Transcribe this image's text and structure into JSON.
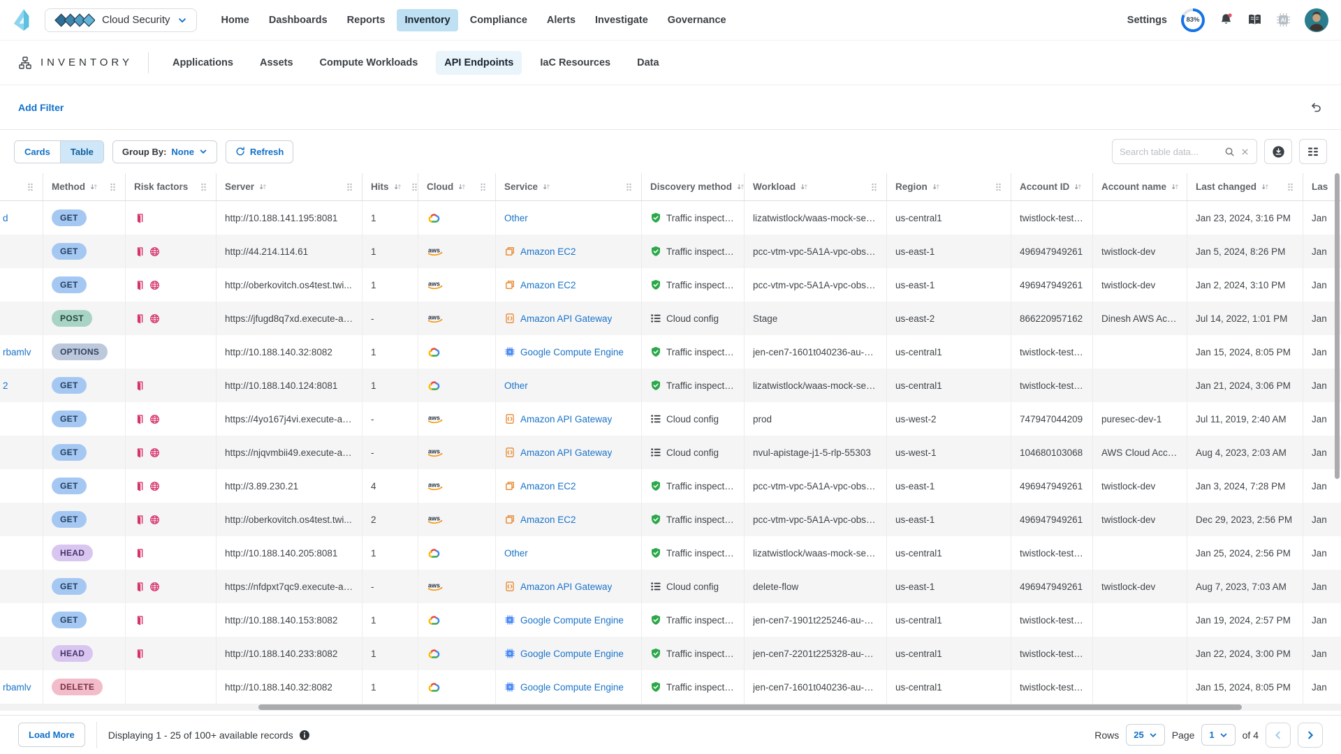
{
  "topnav": {
    "app_switcher": {
      "label": "Cloud Security"
    },
    "items": [
      {
        "label": "Home",
        "active": false
      },
      {
        "label": "Dashboards",
        "active": false
      },
      {
        "label": "Reports",
        "active": false
      },
      {
        "label": "Inventory",
        "active": true
      },
      {
        "label": "Compliance",
        "active": false
      },
      {
        "label": "Alerts",
        "active": false
      },
      {
        "label": "Investigate",
        "active": false
      },
      {
        "label": "Governance",
        "active": false
      }
    ],
    "settings_label": "Settings",
    "credits_percent": "83%"
  },
  "inventory_bar": {
    "title": "INVENTORY",
    "tabs": [
      {
        "label": "Applications",
        "active": false
      },
      {
        "label": "Assets",
        "active": false
      },
      {
        "label": "Compute Workloads",
        "active": false
      },
      {
        "label": "API Endpoints",
        "active": true
      },
      {
        "label": "IaC Resources",
        "active": false
      },
      {
        "label": "Data",
        "active": false
      }
    ]
  },
  "filter_bar": {
    "add_filter_label": "Add Filter"
  },
  "toolbar": {
    "view_toggle": {
      "cards_label": "Cards",
      "table_label": "Table",
      "active": "Table"
    },
    "group_by_label": "Group By:",
    "group_by_value": "None",
    "refresh_label": "Refresh",
    "search_placeholder": "Search table data..."
  },
  "table": {
    "columns": [
      {
        "label": "",
        "slug": "endpoint",
        "sortable": false
      },
      {
        "label": "Method",
        "slug": "method",
        "sortable": true
      },
      {
        "label": "Risk factors",
        "slug": "risk-factors",
        "sortable": false
      },
      {
        "label": "Server",
        "slug": "server",
        "sortable": true
      },
      {
        "label": "Hits",
        "slug": "hits",
        "sortable": true
      },
      {
        "label": "Cloud",
        "slug": "cloud",
        "sortable": true
      },
      {
        "label": "Service",
        "slug": "service",
        "sortable": true
      },
      {
        "label": "Discovery method",
        "slug": "discovery-method",
        "sortable": true
      },
      {
        "label": "Workload",
        "slug": "workload",
        "sortable": true
      },
      {
        "label": "Region",
        "slug": "region",
        "sortable": true
      },
      {
        "label": "Account ID",
        "slug": "account-id",
        "sortable": true
      },
      {
        "label": "Account name",
        "slug": "account-name",
        "sortable": true
      },
      {
        "label": "Last changed",
        "slug": "last-changed",
        "sortable": true
      },
      {
        "label": "Las",
        "slug": "last-seen",
        "sortable": false
      }
    ],
    "discovery_labels": {
      "traffic": "Traffic inspection",
      "config": "Cloud config"
    },
    "method_colors": {
      "GET": {
        "bg": "#a5c8f3",
        "fg": "#243e5f"
      },
      "POST": {
        "bg": "#a9d3c5",
        "fg": "#1f4a3c"
      },
      "OPTIONS": {
        "bg": "#bcc8dc",
        "fg": "#33415c"
      },
      "HEAD": {
        "bg": "#d9c6f0",
        "fg": "#46356b"
      },
      "DELETE": {
        "bg": "#f3bcca",
        "fg": "#7a2f45"
      }
    },
    "rows": [
      {
        "fragment": "d",
        "method": "GET",
        "risks": [
          "door"
        ],
        "server": "http://10.188.141.195:8081",
        "hits": "1",
        "cloud": "gcp",
        "service": "Other",
        "discovery": "traffic",
        "workload": "lizatwistlock/waas-mock-servi...",
        "region": "us-central1",
        "account_id": "twistlock-test-...",
        "account_name": "",
        "last_changed": "Jan 23, 2024, 3:16 PM",
        "last_seen": "Jan"
      },
      {
        "fragment": "",
        "method": "GET",
        "risks": [
          "door",
          "globe"
        ],
        "server": "http://44.214.114.61",
        "hits": "1",
        "cloud": "aws",
        "service": "Amazon EC2",
        "discovery": "traffic",
        "workload": "pcc-vtm-vpc-5A1A-vpc-obser...",
        "region": "us-east-1",
        "account_id": "496947949261",
        "account_name": "twistlock-dev",
        "last_changed": "Jan 5, 2024, 8:26 PM",
        "last_seen": "Jan"
      },
      {
        "fragment": "",
        "method": "GET",
        "risks": [
          "door",
          "globe"
        ],
        "server": "http://oberkovitch.os4test.twi...",
        "hits": "1",
        "cloud": "aws",
        "service": "Amazon EC2",
        "discovery": "traffic",
        "workload": "pcc-vtm-vpc-5A1A-vpc-obser...",
        "region": "us-east-1",
        "account_id": "496947949261",
        "account_name": "twistlock-dev",
        "last_changed": "Jan 2, 2024, 3:10 PM",
        "last_seen": "Jan"
      },
      {
        "fragment": "",
        "method": "POST",
        "risks": [
          "door",
          "globe"
        ],
        "server": "https://jfugd8q7xd.execute-ap...",
        "hits": "-",
        "cloud": "aws",
        "service": "Amazon API Gateway",
        "discovery": "config",
        "workload": "Stage",
        "region": "us-east-2",
        "account_id": "866220957162",
        "account_name": "Dinesh AWS Acc...",
        "last_changed": "Jul 14, 2022, 1:01 PM",
        "last_seen": "Jan"
      },
      {
        "fragment": "rbamlv",
        "method": "OPTIONS",
        "risks": [],
        "server": "http://10.188.140.32:8082",
        "hits": "1",
        "cloud": "gcp",
        "service": "Google Compute Engine",
        "discovery": "traffic",
        "workload": "jen-cen7-1601t040236-au-ho...",
        "region": "us-central1",
        "account_id": "twistlock-test-...",
        "account_name": "",
        "last_changed": "Jan 15, 2024, 8:05 PM",
        "last_seen": "Jan"
      },
      {
        "fragment": "2",
        "method": "GET",
        "risks": [
          "door"
        ],
        "server": "http://10.188.140.124:8081",
        "hits": "1",
        "cloud": "gcp",
        "service": "Other",
        "discovery": "traffic",
        "workload": "lizatwistlock/waas-mock-servi...",
        "region": "us-central1",
        "account_id": "twistlock-test-...",
        "account_name": "",
        "last_changed": "Jan 21, 2024, 3:06 PM",
        "last_seen": "Jan"
      },
      {
        "fragment": "",
        "method": "GET",
        "risks": [
          "door",
          "globe"
        ],
        "server": "https://4yo167j4vi.execute-ap...",
        "hits": "-",
        "cloud": "aws",
        "service": "Amazon API Gateway",
        "discovery": "config",
        "workload": "prod",
        "region": "us-west-2",
        "account_id": "747947044209",
        "account_name": "puresec-dev-1",
        "last_changed": "Jul 11, 2019, 2:40 AM",
        "last_seen": "Jan"
      },
      {
        "fragment": "",
        "method": "GET",
        "risks": [
          "door",
          "globe"
        ],
        "server": "https://njqvmbii49.execute-ap...",
        "hits": "-",
        "cloud": "aws",
        "service": "Amazon API Gateway",
        "discovery": "config",
        "workload": "nvul-apistage-j1-5-rlp-55303",
        "region": "us-west-1",
        "account_id": "104680103068",
        "account_name": "AWS Cloud Acco...",
        "last_changed": "Aug 4, 2023, 2:03 AM",
        "last_seen": "Jan"
      },
      {
        "fragment": "",
        "method": "GET",
        "risks": [
          "door",
          "globe"
        ],
        "server": "http://3.89.230.21",
        "hits": "4",
        "cloud": "aws",
        "service": "Amazon EC2",
        "discovery": "traffic",
        "workload": "pcc-vtm-vpc-5A1A-vpc-obser...",
        "region": "us-east-1",
        "account_id": "496947949261",
        "account_name": "twistlock-dev",
        "last_changed": "Jan 3, 2024, 7:28 PM",
        "last_seen": "Jan"
      },
      {
        "fragment": "",
        "method": "GET",
        "risks": [
          "door",
          "globe"
        ],
        "server": "http://oberkovitch.os4test.twi...",
        "hits": "2",
        "cloud": "aws",
        "service": "Amazon EC2",
        "discovery": "traffic",
        "workload": "pcc-vtm-vpc-5A1A-vpc-obser...",
        "region": "us-east-1",
        "account_id": "496947949261",
        "account_name": "twistlock-dev",
        "last_changed": "Dec 29, 2023, 2:56 PM",
        "last_seen": "Jan"
      },
      {
        "fragment": "",
        "method": "HEAD",
        "risks": [
          "door"
        ],
        "server": "http://10.188.140.205:8081",
        "hits": "1",
        "cloud": "gcp",
        "service": "Other",
        "discovery": "traffic",
        "workload": "lizatwistlock/waas-mock-servi...",
        "region": "us-central1",
        "account_id": "twistlock-test-...",
        "account_name": "",
        "last_changed": "Jan 25, 2024, 2:56 PM",
        "last_seen": "Jan"
      },
      {
        "fragment": "",
        "method": "GET",
        "risks": [
          "door",
          "globe"
        ],
        "server": "https://nfdpxt7qc9.execute-ap...",
        "hits": "-",
        "cloud": "aws",
        "service": "Amazon API Gateway",
        "discovery": "config",
        "workload": "delete-flow",
        "region": "us-east-1",
        "account_id": "496947949261",
        "account_name": "twistlock-dev",
        "last_changed": "Aug 7, 2023, 7:03 AM",
        "last_seen": "Jan"
      },
      {
        "fragment": "",
        "method": "GET",
        "risks": [
          "door"
        ],
        "server": "http://10.188.140.153:8082",
        "hits": "1",
        "cloud": "gcp",
        "service": "Google Compute Engine",
        "discovery": "traffic",
        "workload": "jen-cen7-1901t225246-au-ho...",
        "region": "us-central1",
        "account_id": "twistlock-test-...",
        "account_name": "",
        "last_changed": "Jan 19, 2024, 2:57 PM",
        "last_seen": "Jan"
      },
      {
        "fragment": "",
        "method": "HEAD",
        "risks": [
          "door"
        ],
        "server": "http://10.188.140.233:8082",
        "hits": "1",
        "cloud": "gcp",
        "service": "Google Compute Engine",
        "discovery": "traffic",
        "workload": "jen-cen7-2201t225328-au-ho...",
        "region": "us-central1",
        "account_id": "twistlock-test-...",
        "account_name": "",
        "last_changed": "Jan 22, 2024, 3:00 PM",
        "last_seen": "Jan"
      },
      {
        "fragment": "rbamlv",
        "method": "DELETE",
        "risks": [],
        "server": "http://10.188.140.32:8082",
        "hits": "1",
        "cloud": "gcp",
        "service": "Google Compute Engine",
        "discovery": "traffic",
        "workload": "jen-cen7-1601t040236-au-ho...",
        "region": "us-central1",
        "account_id": "twistlock-test-...",
        "account_name": "",
        "last_changed": "Jan 15, 2024, 8:05 PM",
        "last_seen": "Jan"
      }
    ]
  },
  "footer": {
    "load_more_label": "Load More",
    "records_text": "Displaying 1 - 25 of 100+ available records",
    "rows_label": "Rows",
    "rows_value": "25",
    "page_label": "Page",
    "page_value": "1",
    "page_total_text": "of 4"
  },
  "colors": {
    "accent_blue": "#1070c9",
    "nav_active_bg": "#bfe0f3",
    "tab_active_bg": "#e9f4fb",
    "risk_pink": "#d6336c",
    "shield_green": "#2ba84a",
    "aws_orange": "#f79400",
    "service_orange": "#e8872b",
    "gce_blue": "#4285f4",
    "link_blue": "#1a73c8",
    "row_stripe": "#f5f5f6"
  }
}
